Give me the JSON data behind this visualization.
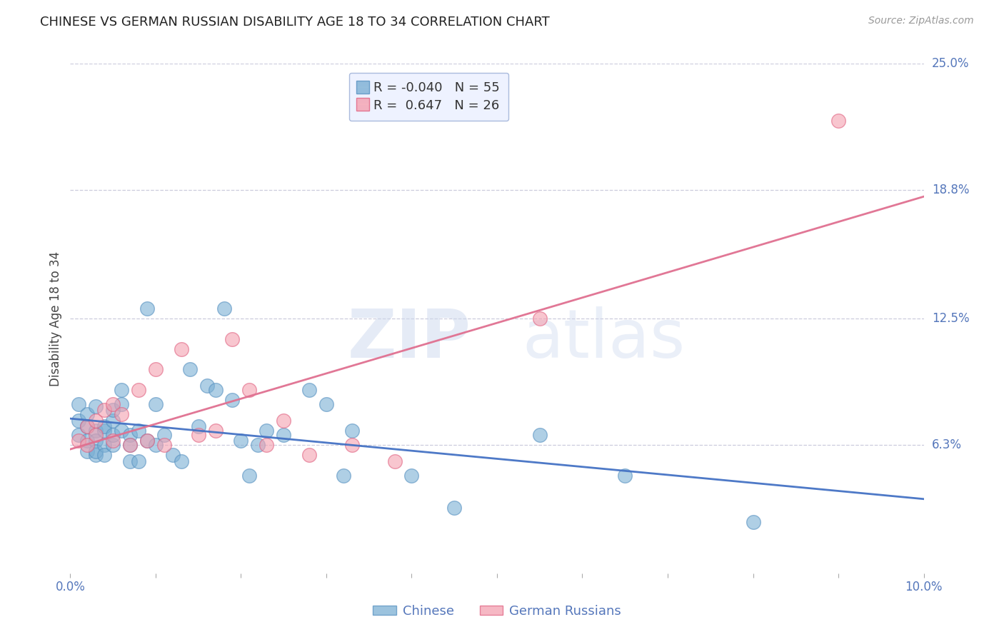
{
  "title": "CHINESE VS GERMAN RUSSIAN DISABILITY AGE 18 TO 34 CORRELATION CHART",
  "source": "Source: ZipAtlas.com",
  "ylabel": "Disability Age 18 to 34",
  "xlim": [
    0.0,
    0.1
  ],
  "ylim": [
    0.0,
    0.25
  ],
  "xticks": [
    0.0,
    0.01,
    0.02,
    0.03,
    0.04,
    0.05,
    0.06,
    0.07,
    0.08,
    0.09,
    0.1
  ],
  "xticklabels": [
    "0.0%",
    "",
    "",
    "",
    "",
    "",
    "",
    "",
    "",
    "",
    "10.0%"
  ],
  "ytick_positions": [
    0.063,
    0.125,
    0.188,
    0.25
  ],
  "ytick_labels": [
    "6.3%",
    "12.5%",
    "18.8%",
    "25.0%"
  ],
  "watermark_zip": "ZIP",
  "watermark_atlas": "atlas",
  "chinese_color": "#7bafd4",
  "chinese_edge_color": "#5590c0",
  "german_russian_color": "#f4a0b0",
  "german_russian_edge_color": "#e06080",
  "chinese_line_color": "#4472c4",
  "german_russian_line_color": "#e07090",
  "chinese_R": -0.04,
  "chinese_N": 55,
  "german_russian_R": 0.647,
  "german_russian_N": 26,
  "legend_box_color": "#eef2ff",
  "legend_border_color": "#aabbdd",
  "chinese_x": [
    0.001,
    0.001,
    0.001,
    0.002,
    0.002,
    0.002,
    0.002,
    0.003,
    0.003,
    0.003,
    0.003,
    0.003,
    0.004,
    0.004,
    0.004,
    0.004,
    0.005,
    0.005,
    0.005,
    0.005,
    0.006,
    0.006,
    0.006,
    0.007,
    0.007,
    0.007,
    0.008,
    0.008,
    0.009,
    0.009,
    0.01,
    0.01,
    0.011,
    0.012,
    0.013,
    0.014,
    0.015,
    0.016,
    0.017,
    0.018,
    0.019,
    0.02,
    0.021,
    0.022,
    0.023,
    0.025,
    0.028,
    0.03,
    0.032,
    0.033,
    0.04,
    0.045,
    0.055,
    0.065,
    0.08
  ],
  "chinese_y": [
    0.083,
    0.075,
    0.068,
    0.072,
    0.065,
    0.078,
    0.06,
    0.082,
    0.07,
    0.065,
    0.058,
    0.06,
    0.07,
    0.063,
    0.072,
    0.058,
    0.075,
    0.063,
    0.08,
    0.068,
    0.07,
    0.083,
    0.09,
    0.055,
    0.068,
    0.063,
    0.07,
    0.055,
    0.065,
    0.13,
    0.063,
    0.083,
    0.068,
    0.058,
    0.055,
    0.1,
    0.072,
    0.092,
    0.09,
    0.13,
    0.085,
    0.065,
    0.048,
    0.063,
    0.07,
    0.068,
    0.09,
    0.083,
    0.048,
    0.07,
    0.048,
    0.032,
    0.068,
    0.048,
    0.025
  ],
  "german_russian_x": [
    0.001,
    0.002,
    0.002,
    0.003,
    0.003,
    0.004,
    0.005,
    0.005,
    0.006,
    0.007,
    0.008,
    0.009,
    0.01,
    0.011,
    0.013,
    0.015,
    0.017,
    0.019,
    0.021,
    0.023,
    0.025,
    0.028,
    0.033,
    0.038,
    0.055,
    0.09
  ],
  "german_russian_y": [
    0.065,
    0.072,
    0.063,
    0.075,
    0.068,
    0.08,
    0.083,
    0.065,
    0.078,
    0.063,
    0.09,
    0.065,
    0.1,
    0.063,
    0.11,
    0.068,
    0.07,
    0.115,
    0.09,
    0.063,
    0.075,
    0.058,
    0.063,
    0.055,
    0.125,
    0.222
  ]
}
